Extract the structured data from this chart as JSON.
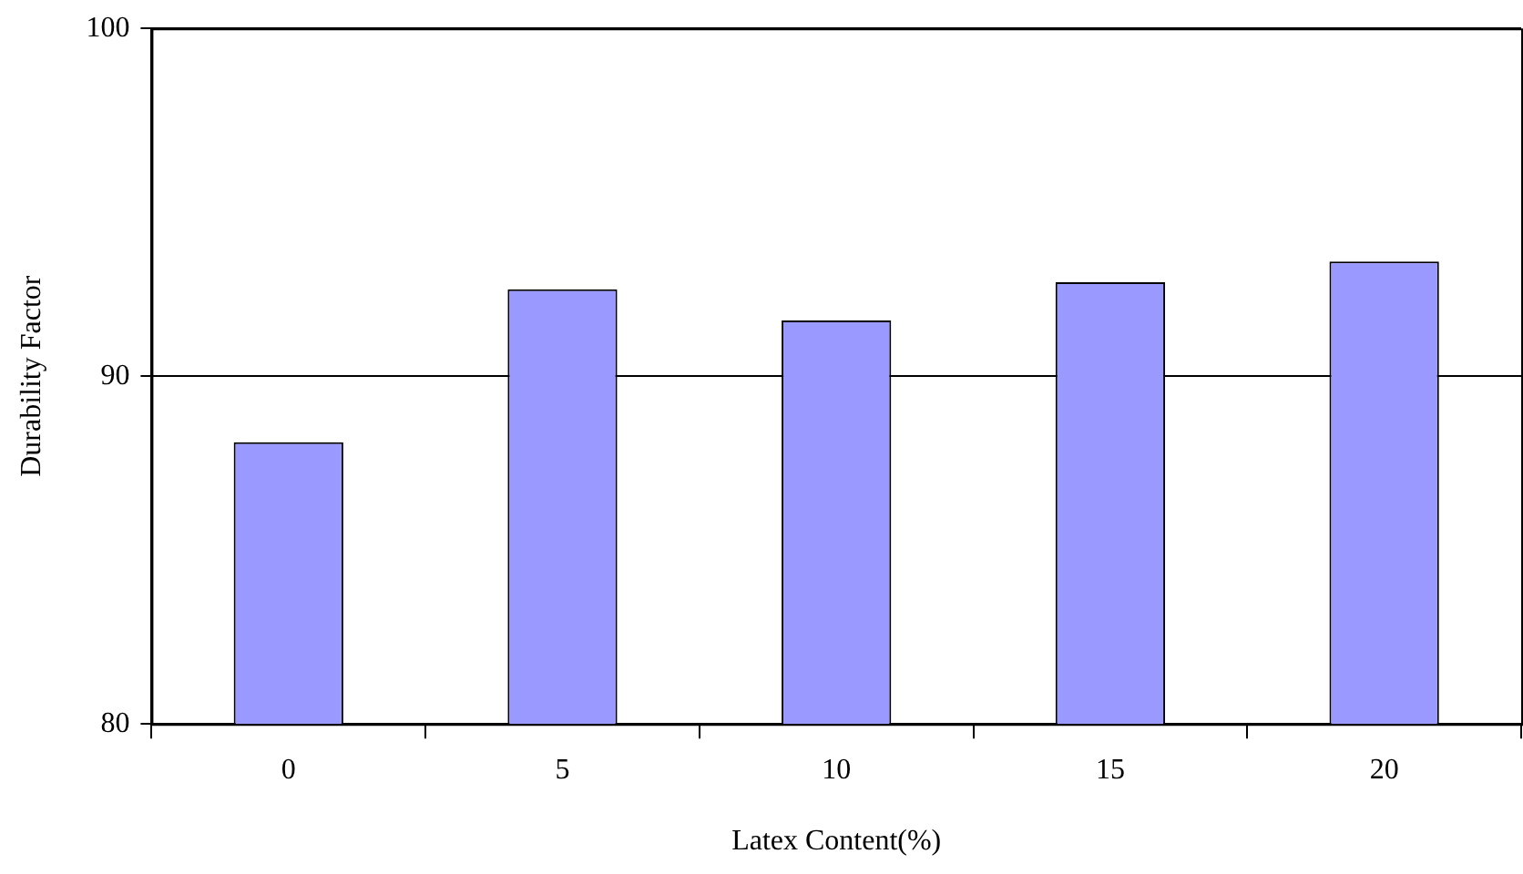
{
  "chart_data": {
    "type": "bar",
    "xlabel": "Latex Content(%)",
    "ylabel": "Durability Factor",
    "categories": [
      "0",
      "5",
      "10",
      "15",
      "20"
    ],
    "values": [
      88.1,
      92.5,
      91.6,
      92.7,
      93.3
    ],
    "color": "#9999ff",
    "ylim": [
      80,
      100
    ],
    "yticks": [
      80,
      90,
      100
    ],
    "grid": "y",
    "legend": false
  }
}
